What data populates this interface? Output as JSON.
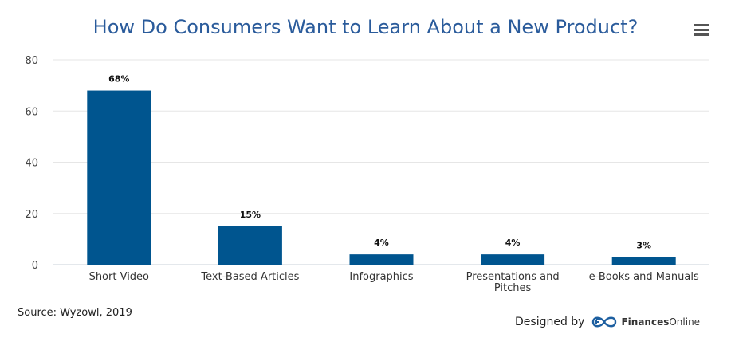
{
  "chart_data": {
    "type": "bar",
    "title": "How Do Consumers Want to Learn About a New Product?",
    "categories": [
      "Short Video",
      "Text-Based Articles",
      "Infographics",
      "Presentations and Pitches",
      "e-Books and Manuals"
    ],
    "category_lines": [
      [
        "Short Video"
      ],
      [
        "Text-Based Articles"
      ],
      [
        "Infographics"
      ],
      [
        "Presentations and",
        "Pitches"
      ],
      [
        "e-Books and Manuals"
      ]
    ],
    "values": [
      68,
      15,
      4,
      4,
      3
    ],
    "data_labels": [
      "68%",
      "15%",
      "4%",
      "4%",
      "3%"
    ],
    "y_ticks": [
      "0",
      "20",
      "40",
      "60",
      "80"
    ],
    "ylim": [
      0,
      80
    ],
    "grid": true,
    "bar_color": "#00558f",
    "xlabel": "",
    "ylabel": ""
  },
  "source": "Source: Wyzowl, 2019",
  "credit": {
    "designed_by": "Designed by",
    "brand_bold": "Finances",
    "brand_rest": "Online",
    "logo_icon": "financesonline-logo-icon"
  },
  "menu_icon": "hamburger-menu-icon"
}
